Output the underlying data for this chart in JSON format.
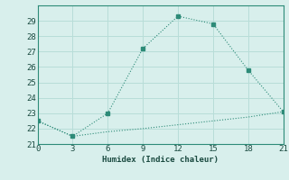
{
  "xlabel": "Humidex (Indice chaleur)",
  "x": [
    0,
    3,
    6,
    9,
    12,
    15,
    18,
    21
  ],
  "y_line": [
    22.5,
    21.5,
    23.0,
    27.2,
    29.3,
    28.8,
    25.8,
    23.1
  ],
  "y_dashed": [
    22.5,
    21.5,
    21.8,
    22.0,
    22.25,
    22.5,
    22.75,
    23.1
  ],
  "line_color": "#2d8b78",
  "bg_color": "#d8efec",
  "grid_color": "#b8ddd8",
  "ylim": [
    21,
    30
  ],
  "xlim": [
    0,
    21
  ],
  "yticks": [
    21,
    22,
    23,
    24,
    25,
    26,
    27,
    28,
    29
  ],
  "xticks": [
    0,
    3,
    6,
    9,
    12,
    15,
    18,
    21
  ]
}
